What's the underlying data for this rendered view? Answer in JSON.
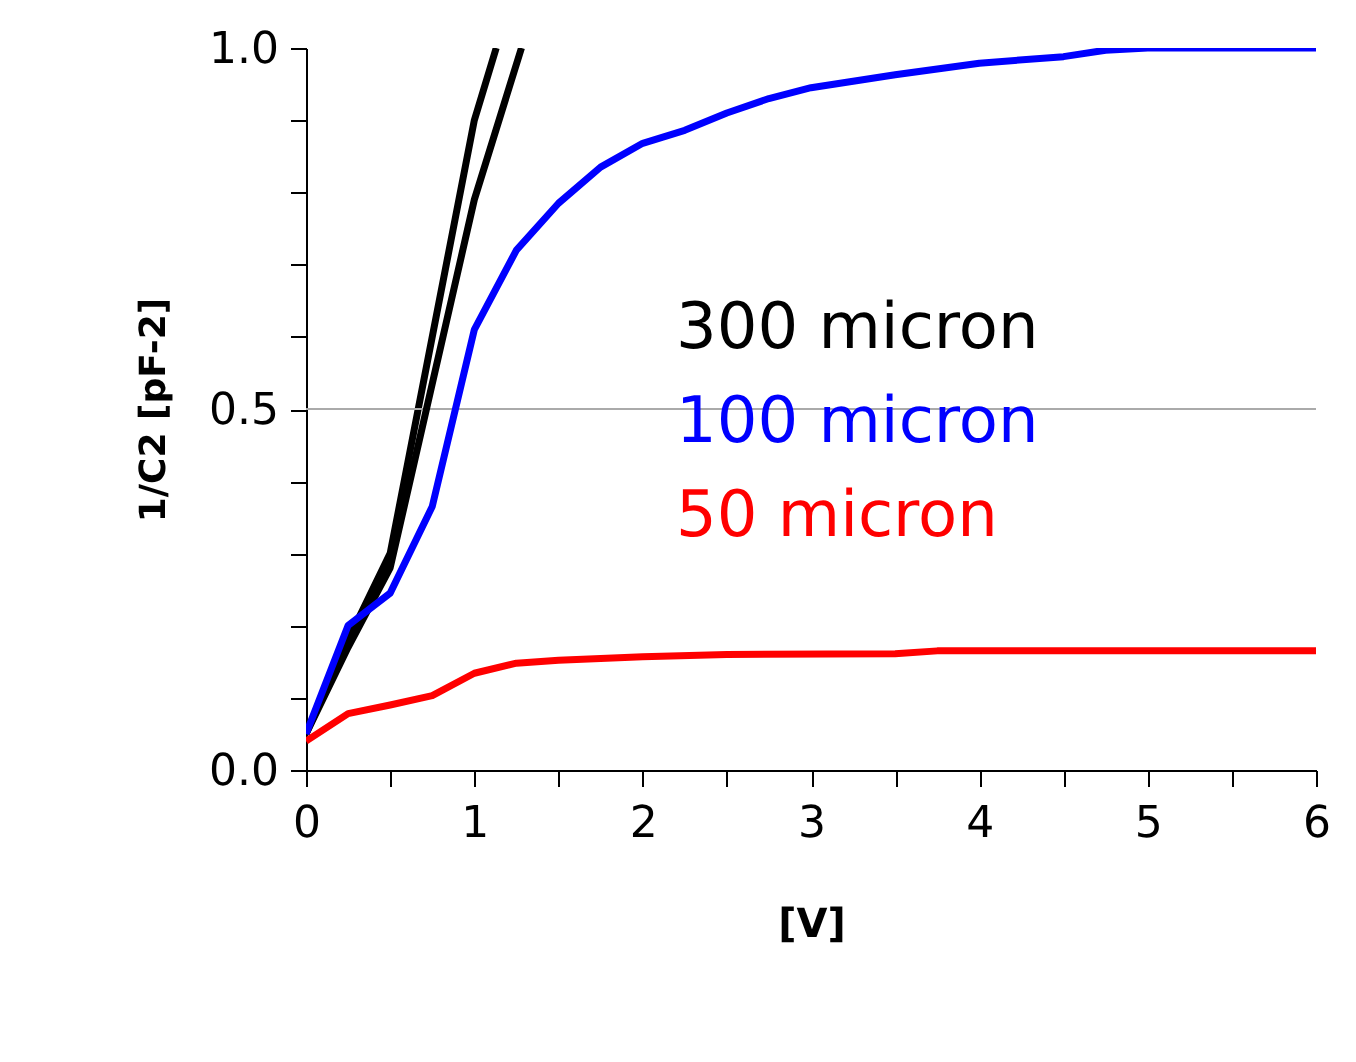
{
  "chart_data": {
    "type": "line",
    "xlabel": "[V]",
    "ylabel": "1/C2 [pF-2]",
    "xlim": [
      0,
      6
    ],
    "ylim": [
      0,
      1
    ],
    "xticks": [
      0,
      {
        "value": 0.5,
        "label": null
      },
      1,
      {
        "value": 1.5,
        "label": null
      },
      2,
      {
        "value": 2.5,
        "label": null
      },
      3,
      {
        "value": 3.5,
        "label": null
      },
      4,
      {
        "value": 4.5,
        "label": null
      },
      5,
      {
        "value": 5.5,
        "label": null
      },
      6
    ],
    "yticks": [
      {
        "value": 0,
        "label": "0.0"
      },
      {
        "value": 0.1,
        "label": null
      },
      {
        "value": 0.2,
        "label": null
      },
      {
        "value": 0.3,
        "label": null
      },
      {
        "value": 0.4,
        "label": null
      },
      {
        "value": 0.5,
        "label": "0.5"
      },
      {
        "value": 0.6,
        "label": null
      },
      {
        "value": 0.7,
        "label": null
      },
      {
        "value": 0.8,
        "label": null
      },
      {
        "value": 0.9,
        "label": null
      },
      {
        "value": 1.0,
        "label": "1.0"
      }
    ],
    "ref_lines": [
      {
        "axis": "y",
        "value": 0.5,
        "color": "#aaaaaa",
        "line_style": "solid"
      }
    ],
    "marker": "none",
    "line_style": "solid",
    "series": [
      {
        "name": "300 micron",
        "color": "#000000",
        "x": [
          0,
          0.25,
          0.5,
          1.0,
          1.13
        ],
        "values": [
          0.05,
          0.18,
          0.3,
          0.9,
          1.0
        ]
      },
      {
        "color": "#000000",
        "x": [
          0,
          0.25,
          0.5,
          1.0,
          1.28
        ],
        "values": [
          0.05,
          0.17,
          0.28,
          0.79,
          1.0
        ]
      },
      {
        "name": "100 micron",
        "color": "#0000ff",
        "x": [
          0,
          0.25,
          0.5,
          0.75,
          1.0,
          1.25,
          1.5,
          1.75,
          2.0,
          2.25,
          2.5,
          2.75,
          3.0,
          3.5,
          4.0,
          4.5,
          4.75,
          5.0,
          6.0
        ],
        "values": [
          0.05,
          0.2,
          0.245,
          0.365,
          0.61,
          0.72,
          0.785,
          0.835,
          0.868,
          0.886,
          0.91,
          0.93,
          0.945,
          0.963,
          0.979,
          0.988,
          0.997,
          1.0,
          1.0
        ]
      },
      {
        "name": "50 micron",
        "color": "#ff0000",
        "x": [
          0,
          0.25,
          0.5,
          0.75,
          1.0,
          1.25,
          1.5,
          2.0,
          2.5,
          3.5,
          3.75,
          6.0
        ],
        "values": [
          0.04,
          0.078,
          0.09,
          0.103,
          0.134,
          0.148,
          0.152,
          0.157,
          0.16,
          0.161,
          0.165,
          0.165
        ]
      }
    ]
  }
}
